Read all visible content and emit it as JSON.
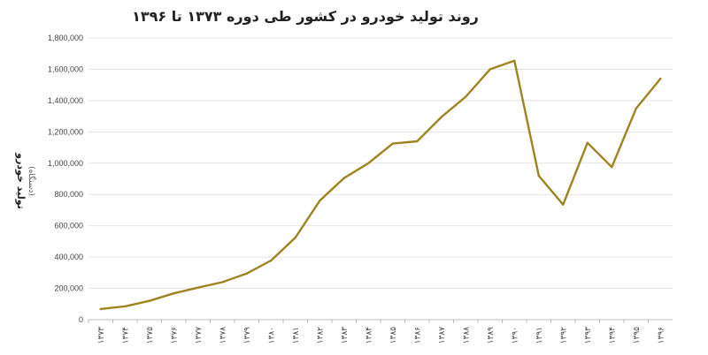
{
  "chart_data": {
    "type": "line",
    "title": "روند تولید خودرو در کشور طی دوره ۱۳۷۳ تا ۱۳۹۶",
    "xlabel": "",
    "ylabel": "تولید خودرو",
    "ylabel_unit": "(دستگاه)",
    "categories": [
      "۱۳۷۳",
      "۱۳۷۴",
      "۱۳۷۵",
      "۱۳۷۶",
      "۱۳۷۷",
      "۱۳۷۸",
      "۱۳۷۹",
      "۱۳۸۰",
      "۱۳۸۱",
      "۱۳۸۲",
      "۱۳۸۳",
      "۱۳۸۴",
      "۱۳۸۵",
      "۱۳۸۶",
      "۱۳۸۷",
      "۱۳۸۸",
      "۱۳۸۹",
      "۱۳۹۰",
      "۱۳۹۱",
      "۱۳۹۲",
      "۱۳۹۳",
      "۱۳۹۴",
      "۱۳۹۵",
      "۱۳۹۶"
    ],
    "series": [
      {
        "values": [
          68000,
          85000,
          120000,
          168000,
          205000,
          240000,
          295000,
          378000,
          525000,
          760000,
          905000,
          1000000,
          1125000,
          1140000,
          1295000,
          1425000,
          1600000,
          1655000,
          920000,
          735000,
          1130000,
          975000,
          1350000,
          1540000
        ]
      }
    ],
    "yticks": [
      0,
      200000,
      400000,
      600000,
      800000,
      1000000,
      1200000,
      1400000,
      1600000,
      1800000
    ],
    "ytick_labels": [
      "0",
      "200,000",
      "400,000",
      "600,000",
      "800,000",
      "1,000,000",
      "1,200,000",
      "1,400,000",
      "1,600,000",
      "1,800,000"
    ],
    "ylim": [
      0,
      1800000
    ],
    "grid": true,
    "legend": "none",
    "line_color": "#9E8420"
  }
}
